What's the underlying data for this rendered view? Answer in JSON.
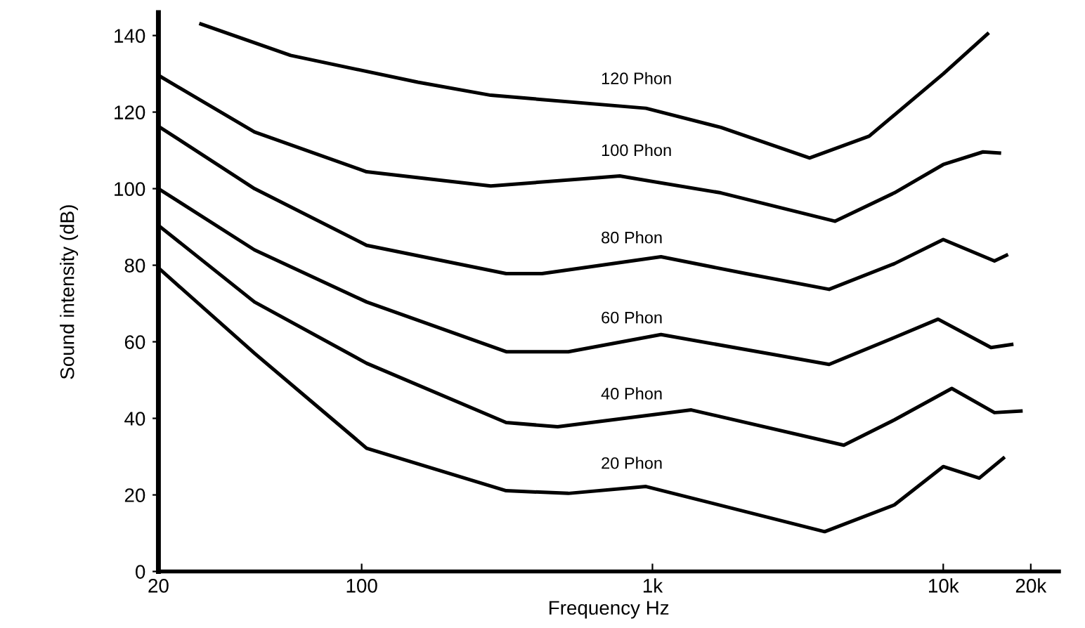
{
  "chart_data": {
    "type": "line",
    "xlabel": "Frequency Hz",
    "ylabel": "Sound intensity (dB)",
    "log": "x",
    "xlim": [
      20,
      25000
    ],
    "ylim": [
      0,
      146
    ],
    "xticks": [
      20,
      100,
      {
        "value": 1000,
        "label": "1k"
      },
      {
        "value": 10000,
        "label": "10k"
      },
      {
        "value": 20000,
        "label": "20k"
      }
    ],
    "yticks": [
      0,
      20,
      40,
      60,
      80,
      100,
      120,
      140
    ],
    "grid": false,
    "marker": "none",
    "line_style": "solid",
    "series": [
      {
        "name": "120 Phon",
        "color": "#000000",
        "x": [
          28,
          57,
          156,
          278,
          950,
          1720,
          3470,
          5560,
          10000,
          14200
        ],
        "values": [
          143,
          134.8,
          127.8,
          124.4,
          121,
          116,
          108,
          113.7,
          130,
          140.4
        ]
      },
      {
        "name": "100 Phon",
        "color": "#000000",
        "x": [
          20,
          42.8,
          104,
          278,
          772,
          1720,
          4240,
          6790,
          10000,
          13700,
          15600
        ],
        "values": [
          129.6,
          114.8,
          104.4,
          100.7,
          103.3,
          98.9,
          91.5,
          98.9,
          106.3,
          109.6,
          109.3
        ]
      },
      {
        "name": "80 Phon",
        "color": "#000000",
        "x": [
          20,
          42.8,
          104,
          314,
          417,
          1070,
          2100,
          4050,
          6790,
          10000,
          15000,
          16500
        ],
        "values": [
          116.3,
          100,
          85.2,
          77.8,
          77.8,
          82.2,
          77.8,
          73.7,
          80.4,
          86.7,
          81.1,
          82.6
        ]
      },
      {
        "name": "60 Phon",
        "color": "#000000",
        "x": [
          20,
          42.8,
          104,
          314,
          514,
          1070,
          4050,
          6790,
          9600,
          14600,
          17200
        ],
        "values": [
          100,
          84,
          70.4,
          57.4,
          57.4,
          61.9,
          54.1,
          61.1,
          65.9,
          58.5,
          59.3
        ]
      },
      {
        "name": "40 Phon",
        "color": "#000000",
        "x": [
          20,
          42.8,
          104,
          314,
          472,
          1360,
          4550,
          6790,
          10700,
          15000,
          18500
        ],
        "values": [
          90.4,
          70.4,
          54.4,
          38.9,
          37.8,
          42.2,
          33,
          39.6,
          47.8,
          41.5,
          41.9
        ]
      },
      {
        "name": "20 Phon",
        "color": "#000000",
        "x": [
          20,
          42.8,
          104,
          314,
          514,
          950,
          3910,
          6790,
          10000,
          13300,
          16100
        ],
        "values": [
          79.3,
          57,
          32.2,
          21.1,
          20.4,
          22.2,
          10.4,
          17.4,
          27.4,
          24.4,
          29.6
        ]
      }
    ]
  }
}
